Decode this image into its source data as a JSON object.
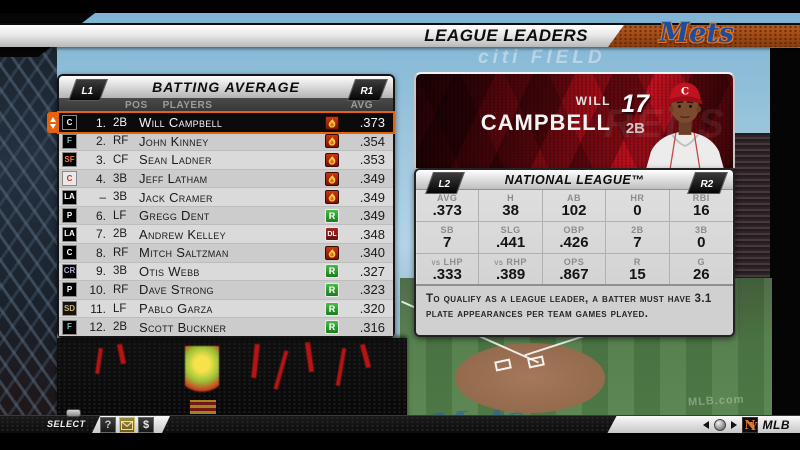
{
  "header": {
    "title": "LEAGUE LEADERS",
    "team_script": "Mets"
  },
  "ambient": {
    "stadium_sign": "citi FIELD",
    "grass_logo": "Mets",
    "grass_ad": "MLB.com"
  },
  "leaders_table": {
    "left_bumper": "L1",
    "right_bumper": "R1",
    "title": "BATTING AVERAGE",
    "columns": {
      "pos": "POS",
      "players": "PLAYERS",
      "avg": "AVG"
    },
    "rows": [
      {
        "rank": "1.",
        "pos": "2B",
        "name": "Will Campbell",
        "team": "reds",
        "status": "hot",
        "avg": ".373",
        "selected": true
      },
      {
        "rank": "2.",
        "pos": "RF",
        "name": "John Kinney",
        "team": "marlins",
        "status": "hot",
        "avg": ".354"
      },
      {
        "rank": "3.",
        "pos": "CF",
        "name": "Sean Ladner",
        "team": "giants",
        "status": "hot",
        "avg": ".353"
      },
      {
        "rank": "4.",
        "pos": "3B",
        "name": "Jeff Latham",
        "team": "cubs",
        "status": "hot",
        "avg": ".349"
      },
      {
        "rank": "–",
        "pos": "3B",
        "name": "Jack Cramer",
        "team": "dodgers",
        "status": "hot",
        "avg": ".349"
      },
      {
        "rank": "6.",
        "pos": "LF",
        "name": "Gregg Dent",
        "team": "phillies",
        "status": "rested",
        "avg": ".349"
      },
      {
        "rank": "7.",
        "pos": "2B",
        "name": "Andrew Kelley",
        "team": "dodgers",
        "status": "dl",
        "avg": ".348"
      },
      {
        "rank": "8.",
        "pos": "RF",
        "name": "Mitch Saltzman",
        "team": "reds",
        "status": "hot",
        "avg": ".340"
      },
      {
        "rank": "9.",
        "pos": "3B",
        "name": "Otis Webb",
        "team": "rockies",
        "status": "rested",
        "avg": ".327"
      },
      {
        "rank": "10.",
        "pos": "RF",
        "name": "Dave Strong",
        "team": "phillies",
        "status": "rested",
        "avg": ".323"
      },
      {
        "rank": "11.",
        "pos": "LF",
        "name": "Pablo Garza",
        "team": "padres",
        "status": "rested",
        "avg": ".320"
      },
      {
        "rank": "12.",
        "pos": "2B",
        "name": "Scott Buckner",
        "team": "marlins",
        "status": "rested",
        "avg": ".316"
      }
    ]
  },
  "teams": {
    "reds": {
      "abbr": "C",
      "fg": "#ffffff",
      "bg": "#000000"
    },
    "marlins": {
      "abbr": "F",
      "fg": "#6fc9c9",
      "bg": "#000000"
    },
    "giants": {
      "abbr": "SF",
      "fg": "#f4793e",
      "bg": "#000000"
    },
    "cubs": {
      "abbr": "C",
      "fg": "#cc2f26",
      "bg": "#e9e9e9"
    },
    "dodgers": {
      "abbr": "LA",
      "fg": "#ffffff",
      "bg": "#000000"
    },
    "phillies": {
      "abbr": "P",
      "fg": "#ffffff",
      "bg": "#000000"
    },
    "rockies": {
      "abbr": "CR",
      "fg": "#b5a8d6",
      "bg": "#000000"
    },
    "padres": {
      "abbr": "SD",
      "fg": "#c9b47a",
      "bg": "#15130c"
    }
  },
  "status_icons": {
    "hot": "flame-icon",
    "rested": "rested-icon",
    "dl": "disabled-list-icon",
    "dl_label": "DL",
    "rested_label": "R"
  },
  "player_card": {
    "first_name": "WILL",
    "last_name": "CAMPBELL",
    "jersey_number": "17",
    "position": "2B",
    "team_watermark": "REDS"
  },
  "league_stats": {
    "left_bumper": "L2",
    "right_bumper": "R2",
    "title": "NATIONAL LEAGUE™",
    "cells": [
      {
        "label": "AVG",
        "value": ".373"
      },
      {
        "label": "H",
        "value": "38"
      },
      {
        "label": "AB",
        "value": "102"
      },
      {
        "label": "HR",
        "value": "0"
      },
      {
        "label": "RBI",
        "value": "16"
      },
      {
        "label": "SB",
        "value": "7"
      },
      {
        "label": "SLG",
        "value": ".441"
      },
      {
        "label": "OBP",
        "value": ".426"
      },
      {
        "label": "2B",
        "value": "7"
      },
      {
        "label": "3B",
        "value": "0"
      },
      {
        "label": "vs LHP",
        "value": ".333"
      },
      {
        "label": "vs RHP",
        "value": ".389"
      },
      {
        "label": "OPS",
        "value": ".867"
      },
      {
        "label": "R",
        "value": "15"
      },
      {
        "label": "G",
        "value": "26"
      }
    ]
  },
  "qualify_note": "To qualify as a league leader, a batter must have 3.1 plate appearances per team games played.",
  "footer": {
    "select_label": "SELECT",
    "help_glyph": "?",
    "money_glyph": "$",
    "mlb_label": "MLB"
  },
  "colors": {
    "accent_orange": "#e8620c",
    "card_red": "#b50d1d",
    "selected_row_bg": "#0b0b0b",
    "mets_blue": "#1d4e9e",
    "mets_orange": "#e87722"
  }
}
